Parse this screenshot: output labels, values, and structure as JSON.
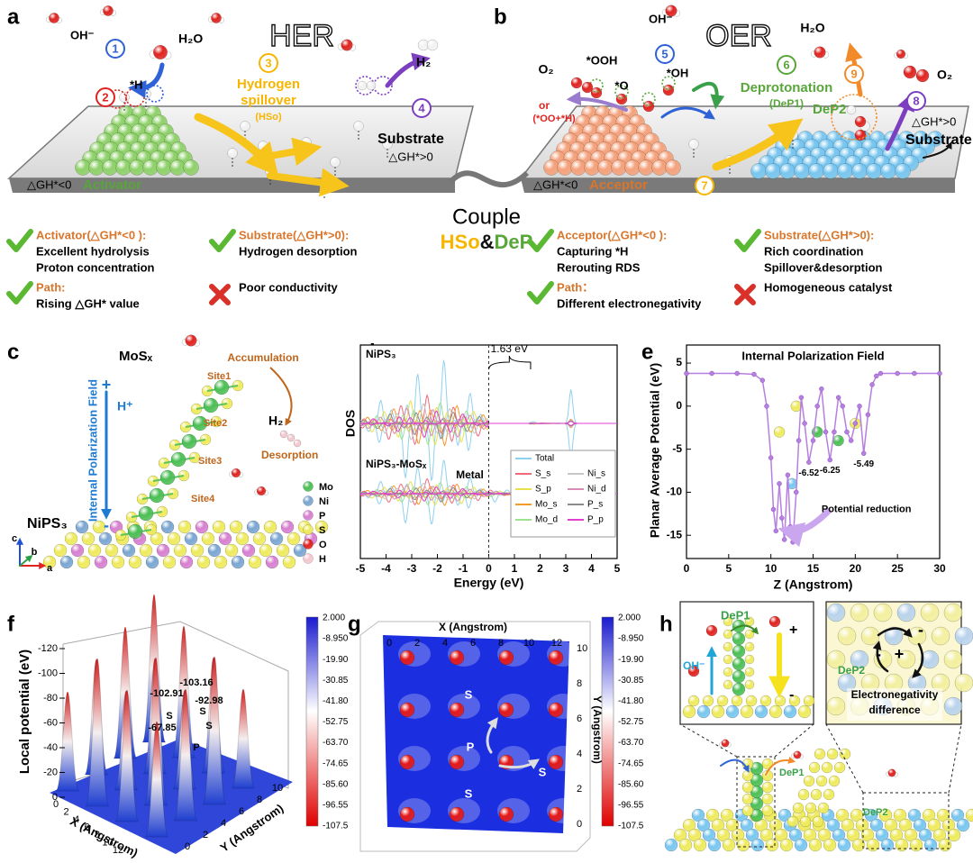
{
  "panel_labels": [
    "a",
    "b",
    "c",
    "d",
    "e",
    "f",
    "g",
    "h"
  ],
  "a": {
    "title": "HER",
    "oh": "OH⁻",
    "h2o": "H₂O",
    "step1": "1",
    "step2": "2",
    "h_star": "*H",
    "step3": "3",
    "spillover_1": "Hydrogen",
    "spillover_2": "spillover",
    "hso": "(HSo)",
    "step4": "4",
    "h2": "H₂",
    "substrate": "Substrate",
    "substrate_dg": "△GH*>0",
    "activator_dg": "△GH*<0",
    "activator": "Activator"
  },
  "b": {
    "title": "OER",
    "oh": "OH⁻",
    "step5": "5",
    "ooh": "*OOH",
    "oh_star": "*OH",
    "o_star": "*O",
    "o2": "O₂",
    "or": "or",
    "oo_h": "(*OO+*H)",
    "step6": "6",
    "deprotonation": "Deprotonation",
    "dep1": "(DeP1)",
    "h2o": "H₂O",
    "step9": "9",
    "dep2": "DeP2",
    "step8": "8",
    "o2_right": "O₂",
    "substrate_dg": "△GH*>0",
    "substrate": "Substrate",
    "acceptor_dg": "△GH*<0",
    "acceptor": "Acceptor",
    "step7": "7"
  },
  "couple": {
    "word": "Couple",
    "hso": "HSo",
    "amp": "&",
    "dep": "DeP"
  },
  "checklist": [
    {
      "mark": "check",
      "title": "Activator(△GH*<0 ):",
      "lines": [
        "Excellent hydrolysis",
        "Proton concentration"
      ]
    },
    {
      "mark": "check",
      "title": "Substrate(△GH*>0):",
      "lines": [
        "Hydrogen desorption"
      ]
    },
    {
      "mark": "check",
      "title": "Acceptor(△GH*<0 ):",
      "lines": [
        "Capturing *H",
        "Rerouting RDS"
      ]
    },
    {
      "mark": "check",
      "title": "Substrate(△GH*>0):",
      "lines": [
        "Rich coordination",
        "Spillover&desorption"
      ]
    },
    {
      "mark": "check",
      "title": "Path:",
      "lines": [
        "Rising △GH* value"
      ]
    },
    {
      "mark": "cross",
      "lines": [
        "Poor conductivity"
      ]
    },
    {
      "mark": "check",
      "title": "Path：",
      "lines": [
        "Different electronegativity"
      ]
    },
    {
      "mark": "cross",
      "lines": [
        "Homogeneous catalyst"
      ]
    }
  ],
  "c": {
    "field": "Internal Polarization Field",
    "plus": "+",
    "minus": "-",
    "hplus": "H⁺",
    "mos": "MoSₓ",
    "accumulation": "Accumulation",
    "sites": [
      "Site1",
      "Site2",
      "Site3",
      "Site4"
    ],
    "h2": "H₂",
    "desorption": "Desorption",
    "nips": "NiPS₃",
    "legend": [
      {
        "name": "Mo",
        "color": "#4cbf55"
      },
      {
        "name": "Ni",
        "color": "#7aa6d2"
      },
      {
        "name": "P",
        "color": "#d77fd0"
      },
      {
        "name": "S",
        "color": "#eeea5c"
      },
      {
        "name": "O",
        "color": "#e0231f"
      },
      {
        "name": "H",
        "color": "#f4c7cf"
      }
    ],
    "axes": [
      "c",
      "b",
      "a"
    ]
  },
  "d": {
    "ylabel": "DOS",
    "xlabel": "Energy (eV)",
    "xlim": [
      -5,
      5
    ],
    "xticks": [
      -5,
      -4,
      -3,
      -2,
      -1,
      0,
      1,
      2,
      3,
      4,
      5
    ],
    "top_label": "NiPS₃",
    "bottom_label": "NiPS₃-MoSₓ",
    "gap": "1.63 eV",
    "metal": "Metal",
    "legend": [
      {
        "name": "Total",
        "color": "#8fd0f0"
      },
      {
        "name": "S_s",
        "color": "#f06a7a"
      },
      {
        "name": "S_p",
        "color": "#e8e24a"
      },
      {
        "name": "Mo_s",
        "color": "#f39a2b"
      },
      {
        "name": "Mo_d",
        "color": "#9de38f"
      },
      {
        "name": "Ni_s",
        "color": "#c7c7c7"
      },
      {
        "name": "Ni_d",
        "color": "#d88bb3"
      },
      {
        "name": "P_s",
        "color": "#8a8a8a"
      },
      {
        "name": "P_p",
        "color": "#e03fd0"
      }
    ]
  },
  "e": {
    "chart": {
      "type": "line",
      "title": "Internal Polarization Field",
      "xlabel": "Z (Angstrom)",
      "ylabel": "Planar Average Potential (eV)",
      "color": "#b77fe0",
      "x": [
        0,
        3,
        6,
        8,
        9,
        9.5,
        10,
        10.3,
        10.6,
        11,
        11.3,
        11.6,
        12,
        12.3,
        12.6,
        13,
        13.3,
        13.6,
        14,
        14.5,
        15,
        15.5,
        16,
        16.5,
        17,
        17.5,
        18,
        18.5,
        19,
        19.5,
        20,
        20.5,
        21,
        21.5,
        22,
        22.5,
        23,
        25,
        27,
        30
      ],
      "values": [
        3.8,
        3.8,
        3.8,
        3.7,
        3,
        0,
        -6,
        -12,
        -14.5,
        -9,
        -13,
        -15.5,
        -8,
        -14,
        -15.8,
        -10,
        -4,
        1,
        -2,
        -6.52,
        -4,
        0,
        2,
        -3,
        -6.25,
        -3,
        1,
        0,
        -3,
        -4,
        -2,
        0,
        -5.49,
        -1,
        2.5,
        3.5,
        3.8,
        3.8,
        3.8,
        3.8
      ],
      "xlim": [
        0,
        30
      ],
      "xticks": [
        0,
        5,
        10,
        15,
        20,
        25,
        30
      ],
      "ylim": [
        -17.7,
        7.1
      ],
      "yticks": [
        5,
        0,
        -5,
        -10,
        -15
      ],
      "minima": [
        {
          "x": 14.5,
          "value": -6.52
        },
        {
          "x": 17,
          "value": -6.25
        },
        {
          "x": 21,
          "value": -5.49
        }
      ],
      "annotation": "Potential reduction"
    }
  },
  "f": {
    "zlabel": "Local potential (eV)",
    "xlabel": "X (Angstrom)",
    "ylabel": "Y (Angstrom)",
    "zticks": [
      -120,
      -100,
      -80,
      -60,
      -40,
      -20,
      0
    ],
    "xticks": [
      0,
      2,
      4,
      6,
      8,
      10,
      12
    ],
    "yticks": [
      0,
      2,
      4,
      6,
      8,
      10
    ],
    "annotations": [
      "-103.16",
      "-102.91",
      "-92.98",
      "S",
      "S",
      "-67.85",
      "S",
      "P"
    ],
    "colorbar": [
      "2.000",
      "-8.950",
      "-19.90",
      "-30.85",
      "-41.80",
      "-52.75",
      "-63.70",
      "-74.65",
      "-85.60",
      "-96.55",
      "-107.5"
    ]
  },
  "g": {
    "xlabel": "X (Angstrom)",
    "ylabel": "Y (Angstrom)",
    "xticks": [
      0,
      2,
      4,
      6,
      8,
      10,
      12
    ],
    "yticks": [
      0,
      2,
      4,
      6,
      8,
      10
    ],
    "labels": [
      "S",
      "P",
      "S",
      "S"
    ],
    "colorbar": [
      "2.000",
      "-8.950",
      "-19.90",
      "-30.85",
      "-41.80",
      "-52.75",
      "-63.70",
      "-74.65",
      "-85.60",
      "-96.55",
      "-107.5"
    ]
  },
  "h": {
    "dep1": "DeP1",
    "oh": "OH⁻",
    "plus": "+",
    "minus": "-",
    "dep2": "DeP2",
    "plus_right": "+",
    "minus_right_1": "-",
    "minus_right_2": "-",
    "caption": [
      "Electronegativity",
      "difference"
    ],
    "dep1_bottom": "DeP1",
    "dep2_bottom": "DeP2"
  }
}
